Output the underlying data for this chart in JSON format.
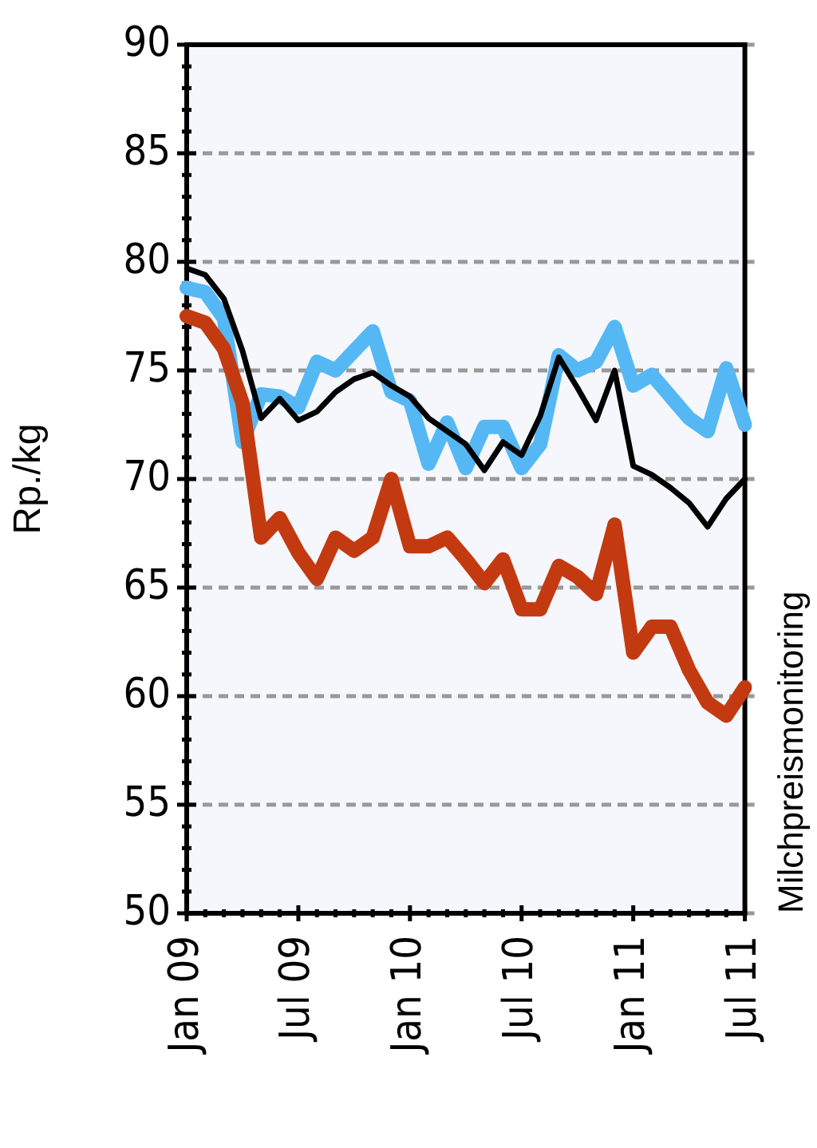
{
  "chart_data": {
    "type": "line",
    "ylabel": "Rp./kg",
    "categories": [
      "Jan 09",
      null,
      null,
      null,
      null,
      null,
      "Jul 09",
      null,
      null,
      null,
      null,
      null,
      "Jan 10",
      null,
      null,
      null,
      null,
      null,
      "Jul 10",
      null,
      null,
      null,
      null,
      null,
      "Jan 11",
      null,
      null,
      null,
      null,
      null,
      "Jul 11"
    ],
    "series": [
      {
        "color": "#55b8f5",
        "values": [
          78.8,
          78.6,
          77.4,
          71.7,
          73.9,
          73.8,
          73.3,
          75.4,
          75.0,
          75.9,
          76.8,
          74.0,
          73.6,
          70.7,
          72.6,
          70.5,
          72.4,
          72.4,
          70.5,
          71.6,
          75.7,
          75.0,
          75.4,
          77.0,
          74.3,
          74.8,
          73.8,
          72.8,
          72.2,
          75.1,
          72.5
        ]
      },
      {
        "color": "#c43a10",
        "values": [
          77.5,
          77.2,
          76.0,
          73.5,
          67.3,
          68.2,
          66.6,
          65.4,
          67.3,
          66.7,
          67.3,
          70.0,
          66.9,
          66.9,
          67.3,
          66.3,
          65.2,
          66.3,
          64.0,
          64.0,
          66.0,
          65.5,
          64.7,
          67.9,
          62.0,
          63.2,
          63.2,
          61.2,
          59.7,
          59.1,
          60.4
        ]
      },
      {
        "color": "#000000",
        "values": [
          79.7,
          79.4,
          78.3,
          75.9,
          72.8,
          73.7,
          72.7,
          73.1,
          74.0,
          74.6,
          74.9,
          74.3,
          73.8,
          72.8,
          72.2,
          71.6,
          70.4,
          71.7,
          71.1,
          72.9,
          75.6,
          74.2,
          72.7,
          75.0,
          70.6,
          70.2,
          69.6,
          68.9,
          67.8,
          69.1,
          70.0
        ]
      }
    ],
    "ylim": [
      50,
      90
    ],
    "yticks": [
      50,
      55,
      60,
      65,
      70,
      75,
      80,
      85,
      90
    ],
    "grid": "y",
    "marker": "none",
    "legend": false,
    "annotations": [
      "Milchpreismonitoring"
    ]
  }
}
